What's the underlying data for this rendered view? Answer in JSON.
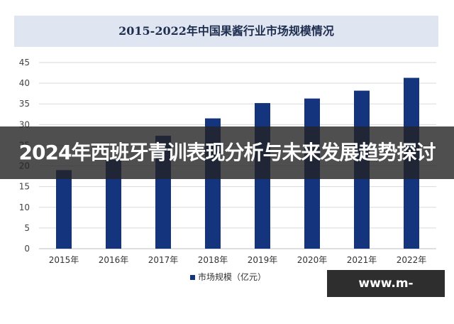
{
  "chart_data": {
    "type": "bar",
    "title": "2015-2022年中国果酱行业市场规模情况",
    "categories": [
      "2015年",
      "2016年",
      "2017年",
      "2018年",
      "2019年",
      "2020年",
      "2021年",
      "2022年"
    ],
    "series": [
      {
        "name": "市场规模（亿元）",
        "values": [
          19,
          21.5,
          27.3,
          31.5,
          35.2,
          36.3,
          38.2,
          41.3
        ]
      }
    ],
    "yticks": [
      "0",
      "5",
      "10",
      "15",
      "20",
      "25",
      "30",
      "35",
      "40",
      "45"
    ],
    "ylim": [
      0,
      45
    ],
    "xlabel": "",
    "ylabel": "",
    "grid": true,
    "legend": "bottom",
    "colors": {
      "bar": "#14357e",
      "title_bg": "#dfe6f1",
      "grid": "#d9d9d9"
    }
  },
  "overlay": {
    "banner_text": "2024年西班牙青训表现分析与未来发展趋势探讨",
    "site_label": "www.m-wdyl.com"
  }
}
